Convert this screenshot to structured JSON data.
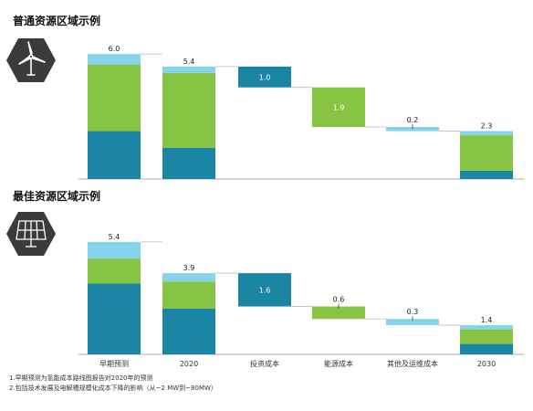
{
  "colors": {
    "base": "#1b85a4",
    "green": "#88c444",
    "light": "#87d2ec",
    "hex": "#3b3b3b",
    "axis": "#aaaaaa"
  },
  "icons": {
    "top": "wind-turbine-icon",
    "bottom": "solar-panel-icon"
  },
  "footnotes": [
    "1.早期预测为氢能成本路线图报告对2020年的预测",
    "2.包括技术发展及电解槽规模化成本下降的影响（从~2 MW到~80MW）"
  ],
  "chart_data": [
    {
      "type": "bar",
      "subtype": "waterfall",
      "title": "普通资源区域示例",
      "categories": [
        "早期预测",
        "2020",
        "投资成本",
        "能源成本",
        "其他及运维成本",
        "2030"
      ],
      "totals": [
        6.0,
        5.4,
        1.0,
        1.9,
        0.2,
        2.3
      ],
      "total_labels": [
        "6.0",
        "5.4",
        "1.0",
        "1.9",
        "0.2",
        "2.3"
      ],
      "ylim": [
        0,
        6.5
      ],
      "series": [
        {
          "name": "",
          "color_key": "base",
          "values": [
            2.3,
            1.5,
            0,
            0,
            0,
            0.4
          ]
        },
        {
          "name": "",
          "color_key": "green",
          "values": [
            3.2,
            3.6,
            0,
            0,
            0,
            1.7
          ]
        },
        {
          "name": "",
          "color_key": "light",
          "values": [
            0.5,
            0.3,
            0,
            0,
            0,
            0.2
          ]
        }
      ],
      "steps": [
        {
          "index": 2,
          "from": 5.4,
          "to": 4.4,
          "color_key": "base"
        },
        {
          "index": 3,
          "from": 4.4,
          "to": 2.5,
          "color_key": "green"
        },
        {
          "index": 4,
          "from": 2.5,
          "to": 2.3,
          "color_key": "light"
        }
      ]
    },
    {
      "type": "bar",
      "subtype": "waterfall",
      "title": "最佳资源区域示例",
      "categories": [
        "早期预测",
        "2020",
        "投资成本",
        "能源成本",
        "其他及运维成本",
        "2030"
      ],
      "totals": [
        5.4,
        3.9,
        1.6,
        0.6,
        0.3,
        1.4
      ],
      "total_labels": [
        "5.4",
        "3.9",
        "1.6",
        "0.6",
        "0.3",
        "1.4"
      ],
      "ylim": [
        0,
        6.5
      ],
      "series": [
        {
          "name": "",
          "color_key": "base",
          "values": [
            3.4,
            2.2,
            0,
            0,
            0,
            0.5
          ]
        },
        {
          "name": "",
          "color_key": "green",
          "values": [
            1.2,
            1.3,
            0,
            0,
            0,
            0.7
          ]
        },
        {
          "name": "",
          "color_key": "light",
          "values": [
            0.8,
            0.4,
            0,
            0,
            0,
            0.2
          ]
        }
      ],
      "steps": [
        {
          "index": 2,
          "from": 3.9,
          "to": 2.3,
          "color_key": "base"
        },
        {
          "index": 3,
          "from": 2.3,
          "to": 1.7,
          "color_key": "green"
        },
        {
          "index": 4,
          "from": 1.7,
          "to": 1.4,
          "color_key": "light"
        }
      ]
    }
  ]
}
